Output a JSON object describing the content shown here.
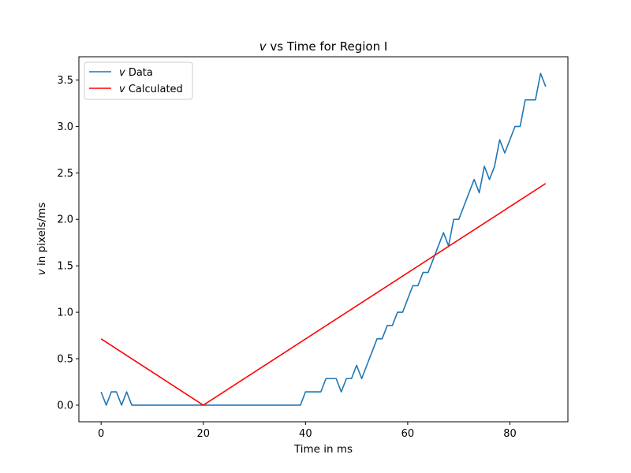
{
  "chart_data": {
    "type": "line",
    "title": {
      "var": "v",
      "rest": " vs Time for Region I"
    },
    "xlabel": "Time in ms",
    "ylabel": {
      "var": "v",
      "rest": " in pixels/ms"
    },
    "xlim": [
      -4.35,
      91.35
    ],
    "ylim": [
      -0.1786,
      3.75
    ],
    "xticks": [
      0,
      20,
      40,
      60,
      80
    ],
    "yticks": [
      0.0,
      0.5,
      1.0,
      1.5,
      2.0,
      2.5,
      3.0,
      3.5
    ],
    "ytick_labels": [
      "0.0",
      "0.5",
      "1.0",
      "1.5",
      "2.0",
      "2.5",
      "3.0",
      "3.5"
    ],
    "grid": false,
    "legend_position": "upper-left",
    "series": [
      {
        "name": {
          "var": "v",
          "rest": " Data"
        },
        "color": "#1f77b4",
        "x": [
          0,
          1,
          2,
          3,
          4,
          5,
          6,
          7,
          8,
          9,
          10,
          11,
          12,
          13,
          14,
          15,
          16,
          17,
          18,
          19,
          20,
          21,
          22,
          23,
          24,
          25,
          26,
          27,
          28,
          29,
          30,
          31,
          32,
          33,
          34,
          35,
          36,
          37,
          38,
          39,
          40,
          41,
          42,
          43,
          44,
          45,
          46,
          47,
          48,
          49,
          50,
          51,
          52,
          53,
          54,
          55,
          56,
          57,
          58,
          59,
          60,
          61,
          62,
          63,
          64,
          65,
          66,
          67,
          68,
          69,
          70,
          71,
          72,
          73,
          74,
          75,
          76,
          77,
          78,
          79,
          80,
          81,
          82,
          83,
          84,
          85,
          86,
          87
        ],
        "y": [
          0.143,
          0,
          0.143,
          0.143,
          0,
          0.143,
          0,
          0,
          0,
          0,
          0,
          0,
          0,
          0,
          0,
          0,
          0,
          0,
          0,
          0,
          0,
          0,
          0,
          0,
          0,
          0,
          0,
          0,
          0,
          0,
          0,
          0,
          0,
          0,
          0,
          0,
          0,
          0,
          0,
          0,
          0.143,
          0.143,
          0.143,
          0.143,
          0.286,
          0.286,
          0.286,
          0.143,
          0.286,
          0.286,
          0.429,
          0.286,
          0.429,
          0.571,
          0.714,
          0.714,
          0.857,
          0.857,
          1.0,
          1.0,
          1.143,
          1.286,
          1.286,
          1.429,
          1.429,
          1.571,
          1.714,
          1.857,
          1.714,
          2.0,
          2.0,
          2.143,
          2.286,
          2.429,
          2.286,
          2.571,
          2.429,
          2.571,
          2.857,
          2.714,
          2.857,
          3.0,
          3.0,
          3.286,
          3.286,
          3.286,
          3.571,
          3.429
        ]
      },
      {
        "name": {
          "var": "v",
          "rest": " Calculated"
        },
        "color": "#ff0000",
        "x": [
          0,
          20,
          87
        ],
        "y": [
          0.714,
          0.0,
          2.386
        ]
      }
    ]
  }
}
